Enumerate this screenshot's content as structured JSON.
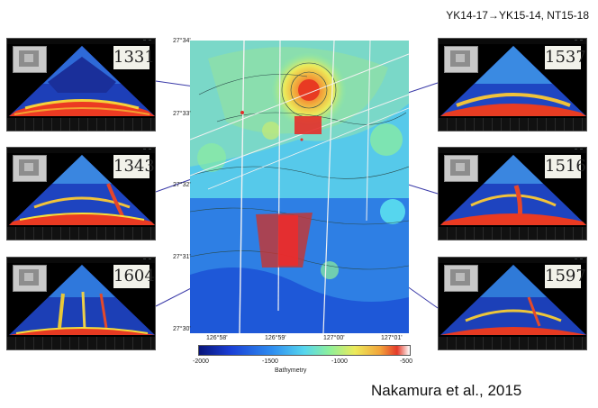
{
  "header": {
    "cruise_label": "YK14-17→YK15-14, NT15-18"
  },
  "citation": "Nakamura et al., 2015",
  "panels": [
    {
      "id": "1331"
    },
    {
      "id": "1343"
    },
    {
      "id": "1604"
    },
    {
      "id": "1537"
    },
    {
      "id": "1516"
    },
    {
      "id": "1597"
    }
  ],
  "map": {
    "lat_labels": [
      "27°34'",
      "27°33'",
      "27°32'",
      "27°31'",
      "27°30'"
    ],
    "lon_labels": [
      "126°58'",
      "126°59'",
      "127°00'",
      "127°01'"
    ]
  },
  "colorbar": {
    "ticks": [
      "-2000",
      "-1500",
      "-1000",
      "-500"
    ],
    "title": "Bathymetry",
    "colors": [
      "#08147a",
      "#1a3fd6",
      "#2f8ff0",
      "#56d6ee",
      "#8ef09a",
      "#ecea5a",
      "#f2a33a",
      "#e43a2a",
      "#ffffff"
    ]
  }
}
